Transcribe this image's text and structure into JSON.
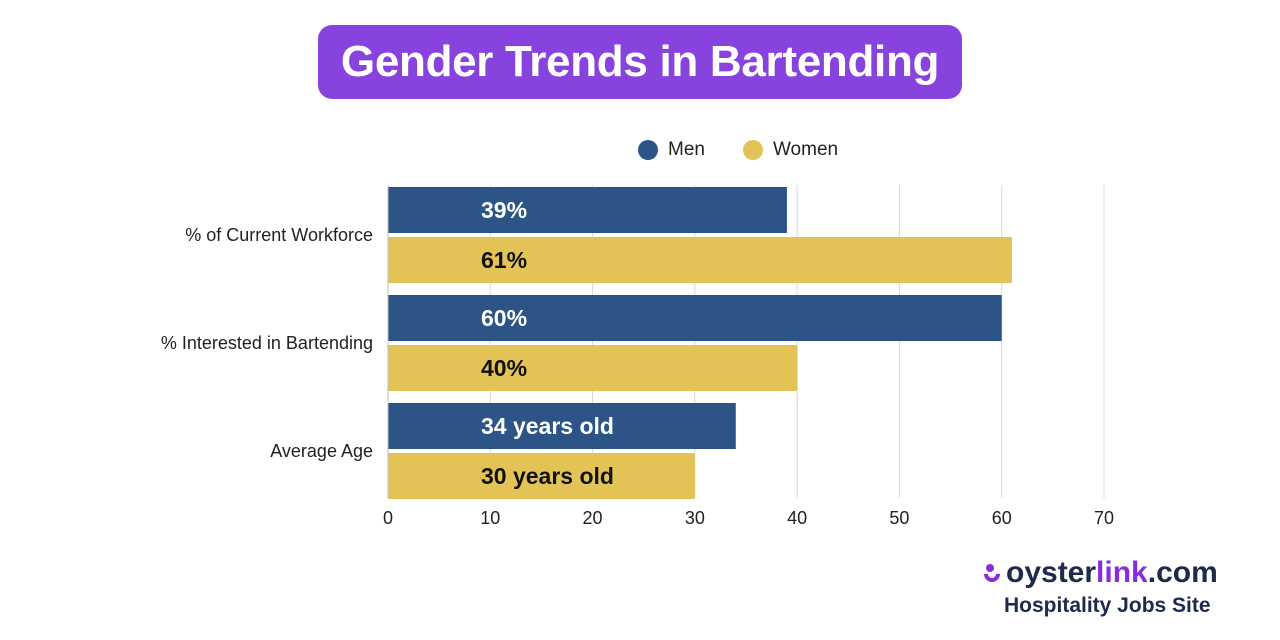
{
  "title": "Gender Trends in Bartending",
  "colors": {
    "title_bg": "#8843df",
    "men": "#2c5487",
    "women": "#e3c356",
    "grid": "#d9d9d9",
    "axis_text": "#222222",
    "brand_purple": "#8a2be2",
    "brand_dark": "#1d2a4a"
  },
  "legend": {
    "men_label": "Men",
    "women_label": "Women"
  },
  "chart_data": {
    "type": "bar",
    "orientation": "horizontal",
    "categories": [
      "% of Current Workforce",
      "% Interested in Bartending",
      "Average Age"
    ],
    "series": [
      {
        "name": "Men",
        "values": [
          39,
          60,
          34
        ],
        "labels": [
          "39%",
          "60%",
          "34 years old"
        ]
      },
      {
        "name": "Women",
        "values": [
          61,
          40,
          30
        ],
        "labels": [
          "61%",
          "40%",
          "30 years old"
        ]
      }
    ],
    "xlim": [
      0,
      70
    ],
    "xticks": [
      0,
      10,
      20,
      30,
      40,
      50,
      60,
      70
    ],
    "grid": true,
    "legend_position": "top"
  },
  "brand": {
    "name_part1": "oyster",
    "name_part2": "link",
    "name_part3": ".com",
    "tagline": "Hospitality Jobs Site",
    "mark_icon": "oysterlink-logo-icon"
  }
}
